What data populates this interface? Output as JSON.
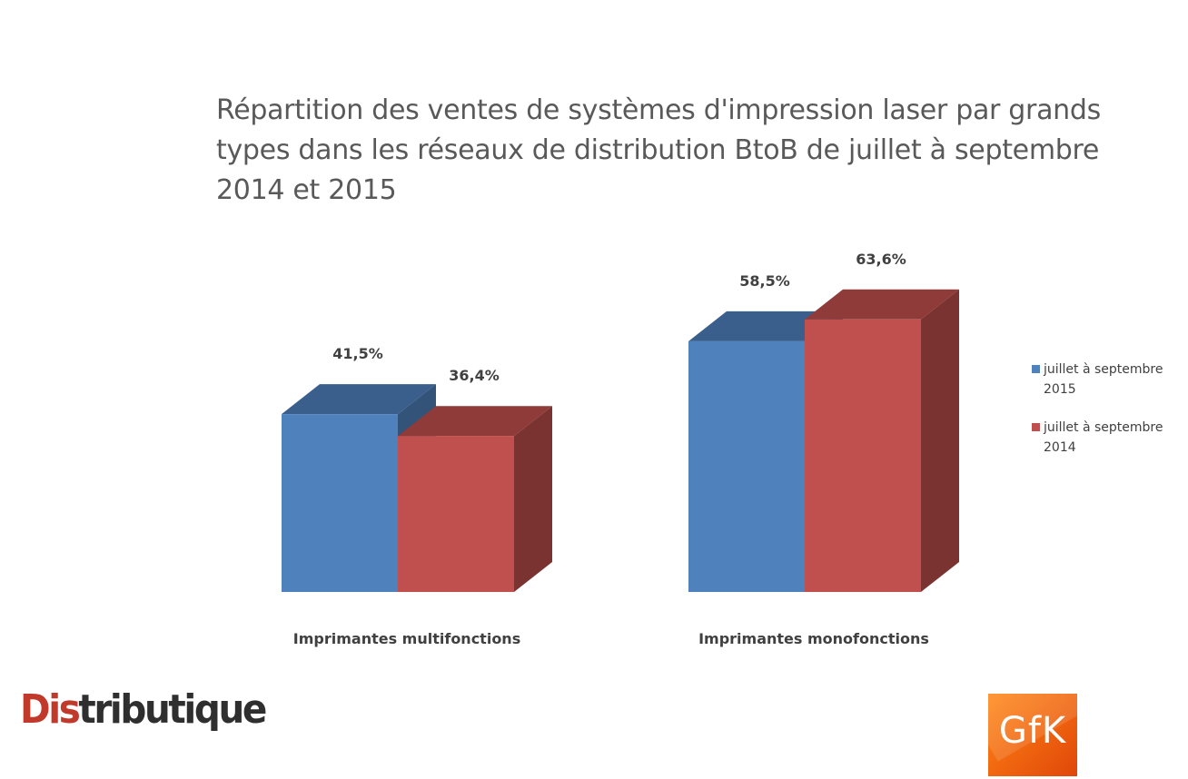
{
  "chart_data": {
    "type": "bar",
    "title": "Répartition des ventes de systèmes d'impression laser par grands types dans les réseaux de distribution BtoB de juillet à septembre 2014 et 2015",
    "categories": [
      "Imprimantes multifonctions",
      "Imprimantes monofonctions"
    ],
    "series": [
      {
        "name": "juillet à septembre 2015",
        "values": [
          41.5,
          58.5
        ],
        "labels": [
          "41,5%",
          "58,5%"
        ],
        "color": "#4f81bd"
      },
      {
        "name": "juillet à septembre 2014",
        "values": [
          36.4,
          63.6
        ],
        "labels": [
          "36,4%",
          "63,6%"
        ],
        "color": "#c0504d"
      }
    ],
    "unit": "%",
    "style": "3d-clustered-column",
    "legend": "right",
    "grid": false
  },
  "logos": {
    "left": {
      "accent": "Dis",
      "rest": "tributique"
    },
    "right": {
      "text": "GfK"
    }
  }
}
